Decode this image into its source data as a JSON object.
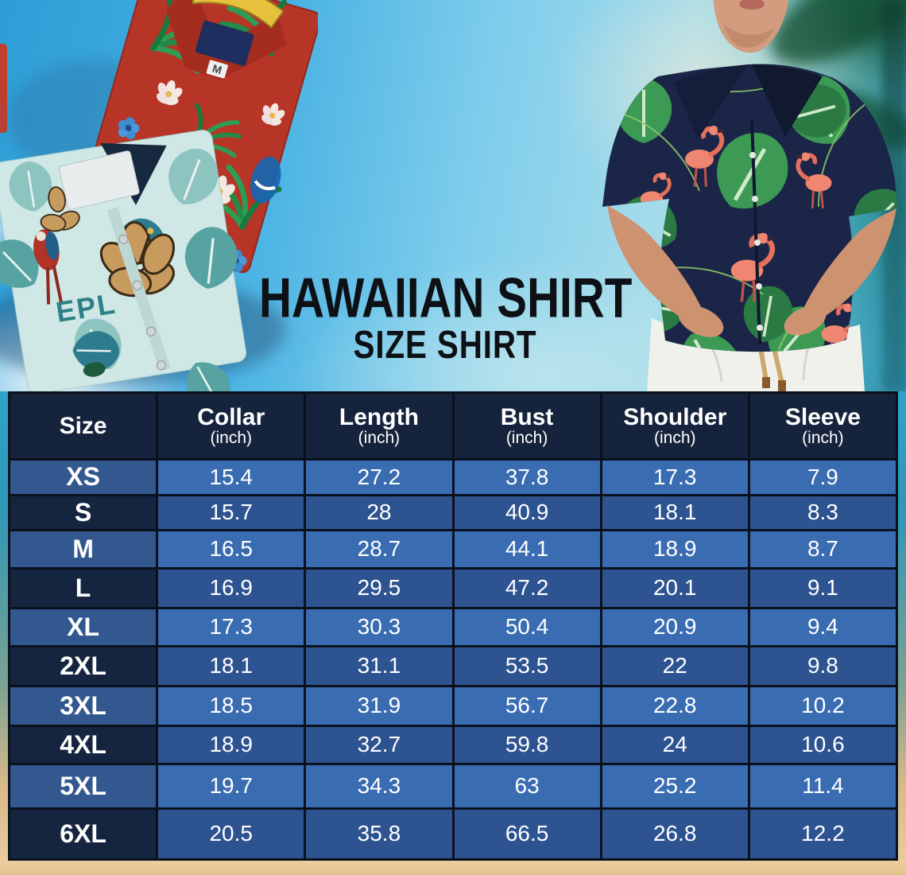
{
  "title": "HAWAIIAN SHIRT",
  "subtitle": "SIZE SHIRT",
  "chart_data": {
    "type": "table",
    "title": "Hawaiian Shirt size chart",
    "columns": [
      {
        "label": "Size",
        "unit": ""
      },
      {
        "label": "Collar",
        "unit": "(inch)"
      },
      {
        "label": "Length",
        "unit": "(inch)"
      },
      {
        "label": "Bust",
        "unit": "(inch)"
      },
      {
        "label": "Shoulder",
        "unit": "(inch)"
      },
      {
        "label": "Sleeve",
        "unit": "(inch)"
      }
    ],
    "rows": [
      {
        "size": "XS",
        "values": [
          "15.4",
          "27.2",
          "37.8",
          "17.3",
          "7.9"
        ],
        "tone": "light"
      },
      {
        "size": "S",
        "values": [
          "15.7",
          "28",
          "40.9",
          "18.1",
          "8.3"
        ],
        "tone": "dark"
      },
      {
        "size": "M",
        "values": [
          "16.5",
          "28.7",
          "44.1",
          "18.9",
          "8.7"
        ],
        "tone": "light"
      },
      {
        "size": "L",
        "values": [
          "16.9",
          "29.5",
          "47.2",
          "20.1",
          "9.1"
        ],
        "tone": "dark"
      },
      {
        "size": "XL",
        "values": [
          "17.3",
          "30.3",
          "50.4",
          "20.9",
          "9.4"
        ],
        "tone": "light"
      },
      {
        "size": "2XL",
        "values": [
          "18.1",
          "31.1",
          "53.5",
          "22",
          "9.8"
        ],
        "tone": "dark"
      },
      {
        "size": "3XL",
        "values": [
          "18.5",
          "31.9",
          "56.7",
          "22.8",
          "10.2"
        ],
        "tone": "light"
      },
      {
        "size": "4XL",
        "values": [
          "18.9",
          "32.7",
          "59.8",
          "24",
          "10.6"
        ],
        "tone": "dark"
      },
      {
        "size": "5XL",
        "values": [
          "19.7",
          "34.3",
          "63",
          "25.2",
          "11.4"
        ],
        "tone": "light"
      },
      {
        "size": "6XL",
        "values": [
          "20.5",
          "35.8",
          "66.5",
          "26.8",
          "12.2"
        ],
        "tone": "dark"
      }
    ]
  },
  "photo_labels": {
    "red_shirt_size_tag": "M",
    "teal_shirt_print_text": "EPL"
  },
  "colors": {
    "header_bg": "#16233c",
    "row_light": "#3a6cb2",
    "row_dark": "#2d5391",
    "size_cell_light": "#32588f",
    "size_cell_dark": "#16253f",
    "table_border": "#0b111c",
    "table_text": "#ffffff",
    "title_text": "#0d1115",
    "sand": "#eccf9f"
  }
}
